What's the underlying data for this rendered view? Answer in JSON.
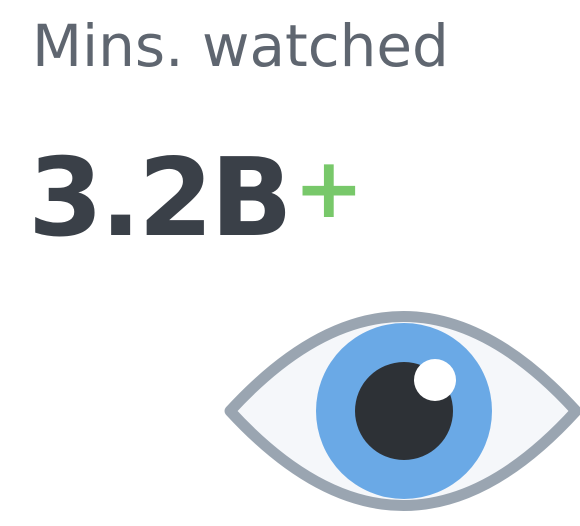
{
  "stat": {
    "label": "Mins. watched",
    "value": "3.2B",
    "suffix": "+",
    "icon": "eye-icon"
  },
  "colors": {
    "label": "#5f6670",
    "value": "#3a4048",
    "suffix": "#78c86a",
    "eye_outline": "#9aa5b1",
    "eye_white": "#f5f7fa",
    "iris": "#6aa9e6",
    "pupil": "#2d3136",
    "highlight": "#ffffff"
  }
}
